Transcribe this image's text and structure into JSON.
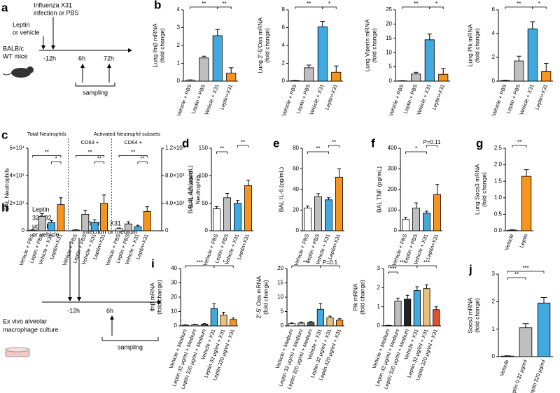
{
  "diagram_a": {
    "panel": "a",
    "texts": [
      "Influenza X31",
      "infection or PBS",
      "Leptin",
      "or vehicle",
      "BALB/c",
      "WT mice",
      "-12h",
      "6h",
      "72h",
      "sampling"
    ]
  },
  "diagram_h": {
    "panel": "h",
    "texts": [
      "Leptin",
      "320/32",
      "μg/mL",
      "or vehicle",
      "Influenza X31",
      "infection or medium",
      "Ex vivo alveolar",
      "macrophage culture",
      "-12h",
      "6h",
      "sampling"
    ]
  },
  "chart_data": [
    {
      "type": "bar",
      "panel": "b",
      "ylabel": [
        "Lung Ifnβ mRNA",
        "(fold change)"
      ],
      "categories": [
        "Vehicle + PBS",
        "Leptin + PBS",
        "Vehicle + X31",
        "Leptin+X31"
      ],
      "values": [
        0.05,
        1.3,
        2.55,
        0.45
      ],
      "errors": [
        0.02,
        0.1,
        0.35,
        0.3
      ],
      "colors": [
        "#ffffff",
        "#bfbfbf",
        "#3fa9e0",
        "#f7941d"
      ],
      "ylim": [
        0,
        4
      ],
      "yticks": [
        0,
        1,
        2,
        3,
        4
      ],
      "significance": [
        "**",
        "**"
      ]
    },
    {
      "type": "bar",
      "ylabel": [
        "Lung 2'-5'Oas mRNA",
        "(fold change)"
      ],
      "categories": [
        "Vehicle + PBS",
        "Leptin + PBS",
        "Vehicle + X31",
        "Leptin+X31"
      ],
      "values": [
        0.05,
        1.5,
        6.1,
        1.0
      ],
      "errors": [
        0.02,
        0.3,
        0.6,
        0.7
      ],
      "colors": [
        "#ffffff",
        "#bfbfbf",
        "#3fa9e0",
        "#f7941d"
      ],
      "ylim": [
        0,
        8
      ],
      "yticks": [
        0,
        2,
        4,
        6,
        8
      ],
      "significance": [
        "**",
        "*"
      ]
    },
    {
      "type": "bar",
      "ylabel": [
        "Lung Viperin mRNA",
        "(fold change)"
      ],
      "categories": [
        "Vehicle + PBS",
        "Leptin + PBS",
        "Vehicle + X31",
        "Leptin+X31"
      ],
      "values": [
        0.1,
        2.5,
        14.5,
        2.4
      ],
      "errors": [
        0.05,
        0.6,
        2.0,
        2.0
      ],
      "colors": [
        "#ffffff",
        "#bfbfbf",
        "#3fa9e0",
        "#f7941d"
      ],
      "ylim": [
        0,
        25
      ],
      "yticks": [
        0,
        5,
        10,
        15,
        20,
        25
      ],
      "significance": [
        "**",
        "*"
      ]
    },
    {
      "type": "bar",
      "ylabel": [
        "Lung Plk mRNA",
        "(fold change)"
      ],
      "categories": [
        "Vehicle + PBS",
        "Leptin + PBS",
        "Vehicle + X31",
        "Leptin+X31"
      ],
      "values": [
        0.05,
        1.7,
        4.4,
        0.8
      ],
      "errors": [
        0.02,
        0.4,
        0.6,
        0.7
      ],
      "colors": [
        "#ffffff",
        "#bfbfbf",
        "#3fa9e0",
        "#f7941d"
      ],
      "ylim": [
        0,
        6
      ],
      "yticks": [
        0,
        2,
        4,
        6
      ],
      "significance": [
        "**",
        "*"
      ]
    },
    {
      "type": "grouped-bar",
      "panel": "c",
      "ylabel": [
        "BAL Neutrophils"
      ],
      "y2label": [
        "BAL Activated",
        "Neutrophils"
      ],
      "subtitle": "Activated Neutrophil subsets",
      "categories": [
        "Vehicle + PBS",
        "Leptin + PBS",
        "Vehicle + X31",
        "Leptin+X31"
      ],
      "colors": [
        "#ffffff",
        "#bfbfbf",
        "#3fa9e0",
        "#f7941d"
      ],
      "groups": [
        {
          "name": "Total Neutrophils",
          "values": [
            500,
            10500,
            6000,
            19000
          ],
          "errors": [
            200,
            2000,
            1500,
            5000
          ]
        },
        {
          "name": "CD63 +",
          "axis": "y2",
          "values": [
            100,
            2400,
            1200,
            4000
          ],
          "errors": [
            50,
            600,
            400,
            1200
          ]
        },
        {
          "name": "CD64 +",
          "axis": "y2",
          "values": [
            300,
            1000,
            600,
            2800
          ],
          "errors": [
            100,
            300,
            200,
            700
          ]
        }
      ],
      "ylim": [
        0,
        60000
      ],
      "yticks": [
        0,
        {
          "value": 20000,
          "label": "2×10⁴"
        },
        {
          "value": 40000,
          "label": "4×10⁴"
        },
        {
          "value": 60000,
          "label": "6×10⁴"
        }
      ],
      "y2lim": [
        0,
        12000
      ],
      "y2ticks": [
        0,
        {
          "value": 4000,
          "label": "4.0×10³"
        },
        {
          "value": 8000,
          "label": "8.0×10³"
        },
        {
          "value": 12000,
          "label": "1.2×10⁴"
        }
      ],
      "significance": [
        "**",
        "*",
        "**",
        "**",
        "**",
        "**"
      ]
    },
    {
      "type": "bar",
      "panel": "d",
      "ylabel": [
        "BAL IL-1β (pg/mL)"
      ],
      "categories": [
        "Vehicle + PBS",
        "Leptin + PBS",
        "Vehicle + X31",
        "Leptin+X31"
      ],
      "values": [
        40,
        60,
        50,
        82
      ],
      "errors": [
        4,
        8,
        5,
        10
      ],
      "colors": [
        "#ffffff",
        "#bfbfbf",
        "#3fa9e0",
        "#f7941d"
      ],
      "ylim": [
        0,
        150
      ],
      "yticks": [
        0,
        50,
        100,
        150
      ],
      "significance": [
        "**",
        "**"
      ]
    },
    {
      "type": "bar",
      "panel": "e",
      "ylabel": [
        "BAL IL-6 (pg/mL)"
      ],
      "categories": [
        "Vehicle + PBS",
        "Leptin + PBS",
        "Vehicle + X31",
        "Leptin+X31"
      ],
      "values": [
        22,
        33,
        30,
        52
      ],
      "errors": [
        2,
        3,
        2,
        8
      ],
      "colors": [
        "#ffffff",
        "#bfbfbf",
        "#3fa9e0",
        "#f7941d"
      ],
      "ylim": [
        0,
        80
      ],
      "yticks": [
        0,
        20,
        40,
        60,
        80
      ],
      "significance": [
        "**",
        "**"
      ]
    },
    {
      "type": "bar",
      "panel": "f",
      "ylabel": [
        "BAL TNF (pg/mL)"
      ],
      "categories": [
        "Vehicle + PBS",
        "Leptin + PBS",
        "Vehicle + X31",
        "Leptin+X31"
      ],
      "values": [
        55,
        110,
        85,
        175
      ],
      "errors": [
        10,
        25,
        10,
        50
      ],
      "colors": [
        "#ffffff",
        "#bfbfbf",
        "#3fa9e0",
        "#f7941d"
      ],
      "ylim": [
        0,
        400
      ],
      "yticks": [
        0,
        100,
        200,
        300,
        400
      ],
      "significance": [
        "*",
        "P=0.11"
      ]
    },
    {
      "type": "bar",
      "panel": "g",
      "ylabel": [
        "Lung Socs3 mRNA",
        "(fold change)"
      ],
      "categories": [
        "Vehicle",
        "Leptin"
      ],
      "values": [
        0.02,
        1.65
      ],
      "errors": [
        0.01,
        0.2
      ],
      "colors": [
        "#ffffff",
        "#f7941d"
      ],
      "ylim": [
        0,
        2.5
      ],
      "yticks": [
        {
          "value": 0,
          "label": "0.0"
        },
        {
          "value": 0.5,
          "label": "0.5"
        },
        {
          "value": 1,
          "label": "1.0"
        },
        {
          "value": 1.5,
          "label": "1.5"
        },
        {
          "value": 2,
          "label": "2.0"
        },
        {
          "value": 2.5,
          "label": "2.5"
        }
      ],
      "significance": [
        "**"
      ]
    },
    {
      "type": "bar",
      "panel": "i",
      "ylabel": [
        "Ifnβ mRNA",
        "(fold change)"
      ],
      "categories": [
        "Vehicle + Medium",
        "Leptin 32 μg/ml + Medium",
        "Leptin 320 μg/ml + Medium",
        "Vehicle + X31",
        "Leptin 32 μg/ml + X31",
        "Leptin 320 μg/ml + X31"
      ],
      "values": [
        0.5,
        0.8,
        1.2,
        12,
        7.5,
        4.5
      ],
      "errors": [
        0.2,
        0.3,
        0.4,
        3.5,
        2,
        1
      ],
      "colors": [
        "#ffffff",
        "#bfbfbf",
        "#555555",
        "#3fa9e0",
        "#e8c07a",
        "#f7941d"
      ],
      "ylim": [
        0,
        40
      ],
      "yticks": [
        0,
        10,
        20,
        30,
        40
      ],
      "significance": [
        "***",
        "*"
      ]
    },
    {
      "type": "bar",
      "ylabel": [
        "2'-5' Oas mRNA",
        "(fold change)"
      ],
      "categories": [
        "Vehicle + Medium",
        "Leptin 32 μg/ml + Medium",
        "Leptin 320 μg/ml + Medium",
        "Vehicle + X31",
        "Leptin 32 μg/ml + X31",
        "Leptin 320 μg/ml + X31"
      ],
      "values": [
        0.8,
        1.0,
        1.2,
        5.8,
        2.8,
        2.0
      ],
      "errors": [
        0.2,
        0.3,
        0.3,
        2,
        0.6,
        0.5
      ],
      "colors": [
        "#ffffff",
        "#bfbfbf",
        "#555555",
        "#3fa9e0",
        "#e8c07a",
        "#f7941d"
      ],
      "ylim": [
        0,
        20
      ],
      "yticks": [
        0,
        5,
        10,
        15,
        20
      ],
      "significance": [
        "***",
        "P=0.1"
      ]
    },
    {
      "type": "bar",
      "ylabel": [
        "Plk mRNA",
        "(fold change)"
      ],
      "categories": [
        "Vehicle + Medium",
        "Leptin 32 μg/ml + Medium",
        "Leptin 320 μg/ml + Medium",
        "Vehicle + X31",
        "Leptin 32 μg/ml + X31",
        "Leptin 320 μg/ml + X31"
      ],
      "values": [
        0.02,
        1.3,
        1.4,
        1.85,
        1.95,
        0.85
      ],
      "errors": [
        0.01,
        0.15,
        0.2,
        0.2,
        0.2,
        0.15
      ],
      "colors": [
        "#ffffff",
        "#bfbfbf",
        "#222222",
        "#3fa9e0",
        "#e8c07a",
        "#e0502a"
      ],
      "ylim": [
        0,
        3
      ],
      "yticks": [
        0,
        1,
        2,
        3
      ],
      "significance": [
        "***",
        "***",
        "***"
      ]
    },
    {
      "type": "bar",
      "panel": "j",
      "ylabel": [
        "Socs3 mRNA",
        "(fold change)"
      ],
      "categories": [
        "Vehicle",
        "Leptin 0.32 μg/ml",
        "Leptin 320 μg/ml"
      ],
      "values": [
        0.02,
        1.05,
        1.95
      ],
      "errors": [
        0.01,
        0.15,
        0.2
      ],
      "colors": [
        "#ffffff",
        "#bfbfbf",
        "#3fa9e0"
      ],
      "ylim": [
        0,
        3
      ],
      "yticks": [
        0,
        1,
        2,
        3
      ],
      "significance": [
        "**",
        "***"
      ]
    }
  ]
}
